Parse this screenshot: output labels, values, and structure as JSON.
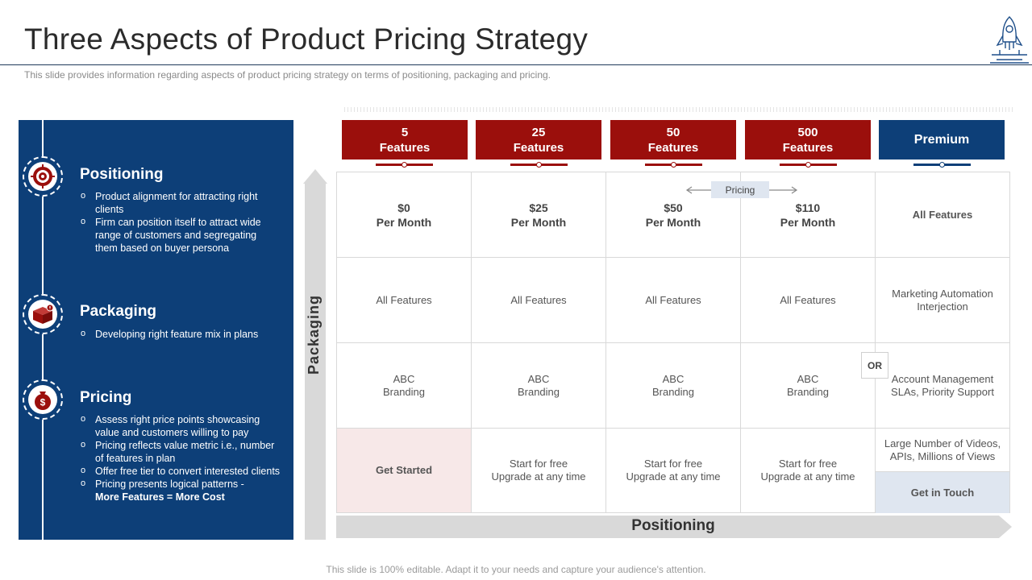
{
  "slide": {
    "title": "Three Aspects of Product Pricing Strategy",
    "subtitle": "This slide provides information regarding aspects of product pricing strategy on terms of positioning, packaging and pricing.",
    "footer": "This slide is 100% editable. Adapt it to your needs and capture your audience's attention."
  },
  "left_panel": {
    "positioning": {
      "heading": "Positioning",
      "icon": "target-icon",
      "bullets": [
        "Product alignment for attracting right clients",
        "Firm can position itself to attract wide range of customers and segregating them based on buyer persona"
      ]
    },
    "packaging": {
      "heading": "Packaging",
      "icon": "package-icon",
      "bullets": [
        "Developing  right feature mix in plans"
      ]
    },
    "pricing": {
      "heading": "Pricing",
      "icon": "money-bag-icon",
      "bullets": [
        "Assess right price points showcasing value and customers willing to pay",
        "Pricing reflects value metric i.e., number of features in plan",
        "Offer free tier to convert interested clients",
        "Pricing presents logical patterns -"
      ],
      "bullet_bold": "More Features = More Cost"
    }
  },
  "colors": {
    "red": "#9b0f0c",
    "navy": "#0d3f78",
    "light_pink": "#f7e8e8",
    "light_blue": "#dfe6f0"
  },
  "table": {
    "headers": [
      "5\nFeatures",
      "25\nFeatures",
      "50\nFeatures",
      "500\nFeatures",
      "Premium"
    ],
    "pricing_label": "Pricing",
    "or_label": "OR",
    "packaging_label": "Packaging",
    "positioning_label": "Positioning",
    "rows": [
      [
        "$0\nPer Month",
        "$25\nPer Month",
        "$50\nPer Month",
        "$110\nPer Month",
        "All Features"
      ],
      [
        "All Features",
        "All Features",
        "All Features",
        "All Features",
        "Marketing Automation\nInterjection"
      ],
      [
        "ABC\nBranding",
        "ABC\nBranding",
        "ABC\nBranding",
        "ABC\nBranding",
        "Account Management\nSLAs, Priority Support"
      ],
      [
        "Get Started",
        "Start for free\nUpgrade  at any time",
        "Start for free\nUpgrade  at any time",
        "Start for free\nUpgrade  at any time",
        "Large Number of Videos,\nAPIs, Millions of Views"
      ]
    ],
    "premium_cta": "Get in Touch"
  }
}
